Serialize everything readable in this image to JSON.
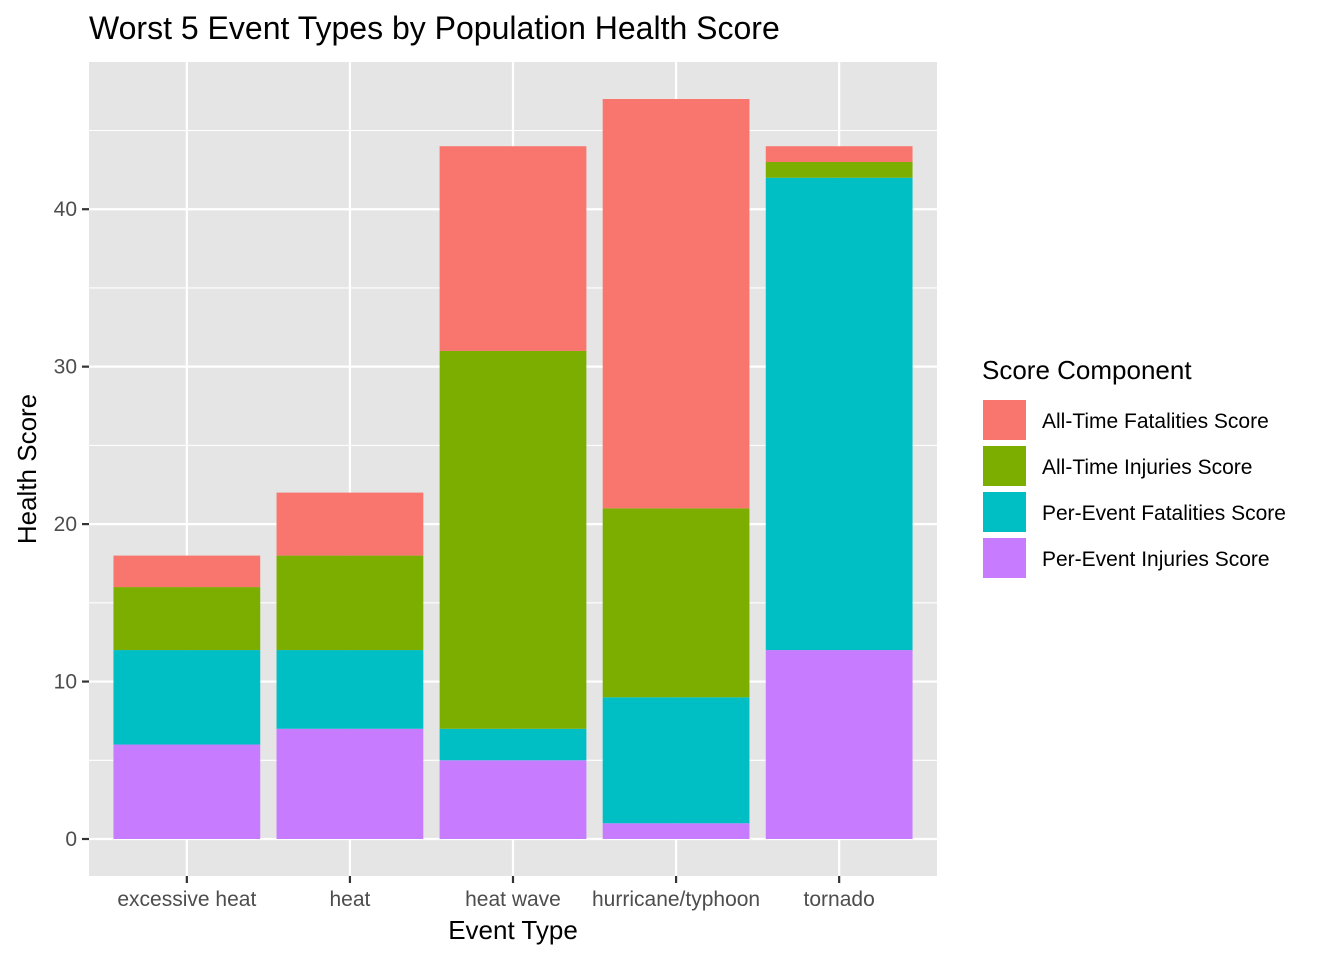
{
  "chart_data": {
    "type": "bar",
    "stacked": true,
    "title": "Worst 5 Event Types by Population Health Score",
    "xlabel": "Event Type",
    "ylabel": "Health Score",
    "categories": [
      "excessive heat",
      "heat",
      "heat wave",
      "hurricane/typhoon",
      "tornado"
    ],
    "ylim": [
      -2.35,
      49.35
    ],
    "y_ticks": [
      0,
      10,
      20,
      30,
      40
    ],
    "y_tick_labels": [
      "0",
      "10",
      "20",
      "30",
      "40"
    ],
    "grid": true,
    "panel_background": "#e5e5e5",
    "grid_color": "#ffffff",
    "legend": {
      "title": "Score Component",
      "position": "right"
    },
    "series": [
      {
        "name": "Per-Event Injuries Score",
        "color": "#c77cff",
        "values": [
          6,
          7,
          5,
          1,
          12
        ]
      },
      {
        "name": "Per-Event Fatalities Score",
        "color": "#00bfc4",
        "values": [
          6,
          5,
          2,
          8,
          30
        ]
      },
      {
        "name": "All-Time Injuries Score",
        "color": "#7cae00",
        "values": [
          4,
          6,
          24,
          12,
          1
        ]
      },
      {
        "name": "All-Time Fatalities Score",
        "color": "#f8766d",
        "values": [
          2,
          4,
          13,
          26,
          1
        ]
      }
    ],
    "legend_order": [
      "All-Time Fatalities Score",
      "All-Time Injuries Score",
      "Per-Event Fatalities Score",
      "Per-Event Injuries Score"
    ]
  }
}
